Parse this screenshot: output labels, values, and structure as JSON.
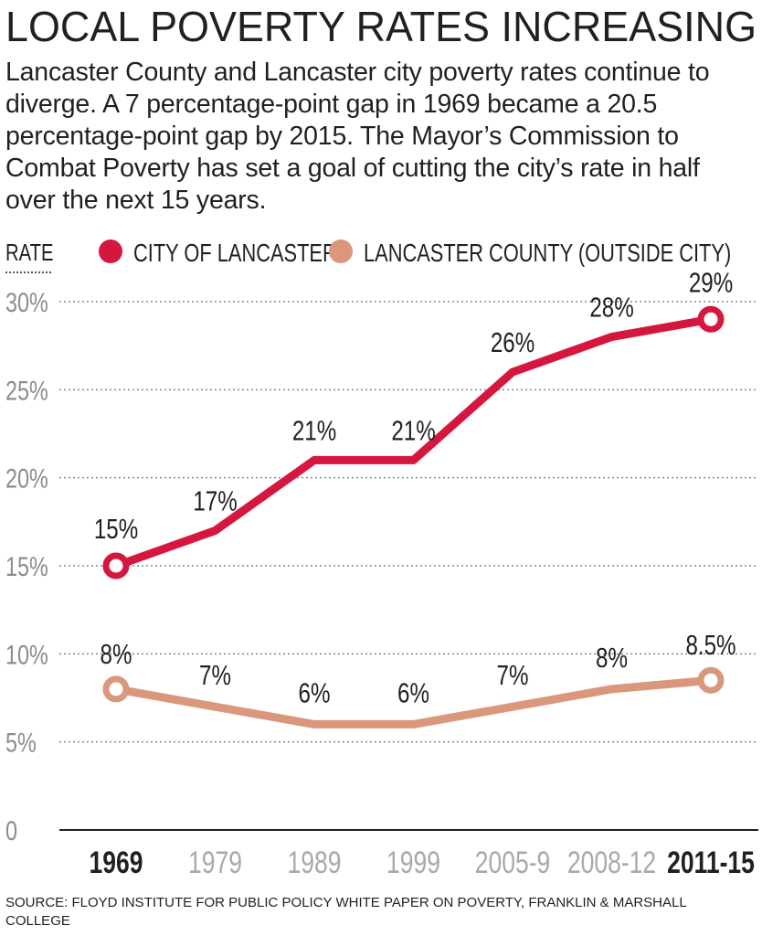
{
  "chart_data": {
    "type": "line",
    "title": "LOCAL POVERTY RATES INCREASING",
    "subtitle": "Lancaster County and Lancaster city poverty rates continue to diverge. A 7 percentage-point gap in 1969 became a 20.5 percentage-point gap by 2015. The Mayor’s Commission to Combat Poverty has set a goal of cutting the city’s rate in half over the next 15 years.",
    "y_label": "RATE",
    "categories": [
      "1969",
      "1979",
      "1989",
      "1999",
      "2005-9",
      "2008-12",
      "2011-15"
    ],
    "series": [
      {
        "name": "CITY OF LANCASTER",
        "color": "#d5173f",
        "values": [
          15,
          17,
          21,
          21,
          26,
          28,
          29
        ],
        "value_labels": [
          "15%",
          "17%",
          "21%",
          "21%",
          "26%",
          "28%",
          "29%"
        ]
      },
      {
        "name": "LANCASTER COUNTY (OUTSIDE CITY)",
        "color": "#d9977b",
        "values": [
          8,
          7,
          6,
          6,
          7,
          8,
          8.5
        ],
        "value_labels": [
          "8%",
          "7%",
          "6%",
          "6%",
          "7%",
          "8%",
          "8.5%"
        ]
      }
    ],
    "ylim": [
      0,
      30
    ],
    "yticks": [
      0,
      {
        "value": 5,
        "label": "5%"
      },
      {
        "value": 10,
        "label": "10%"
      },
      {
        "value": 15,
        "label": "15%"
      },
      {
        "value": 20,
        "label": "20%"
      },
      {
        "value": 25,
        "label": "25%"
      },
      {
        "value": 30,
        "label": "30%"
      }
    ],
    "grid": true,
    "source": "SOURCE:  FLOYD INSTITUTE FOR PUBLIC POLICY WHITE PAPER ON POVERTY, FRANKLIN & MARSHALL COLLEGE"
  }
}
